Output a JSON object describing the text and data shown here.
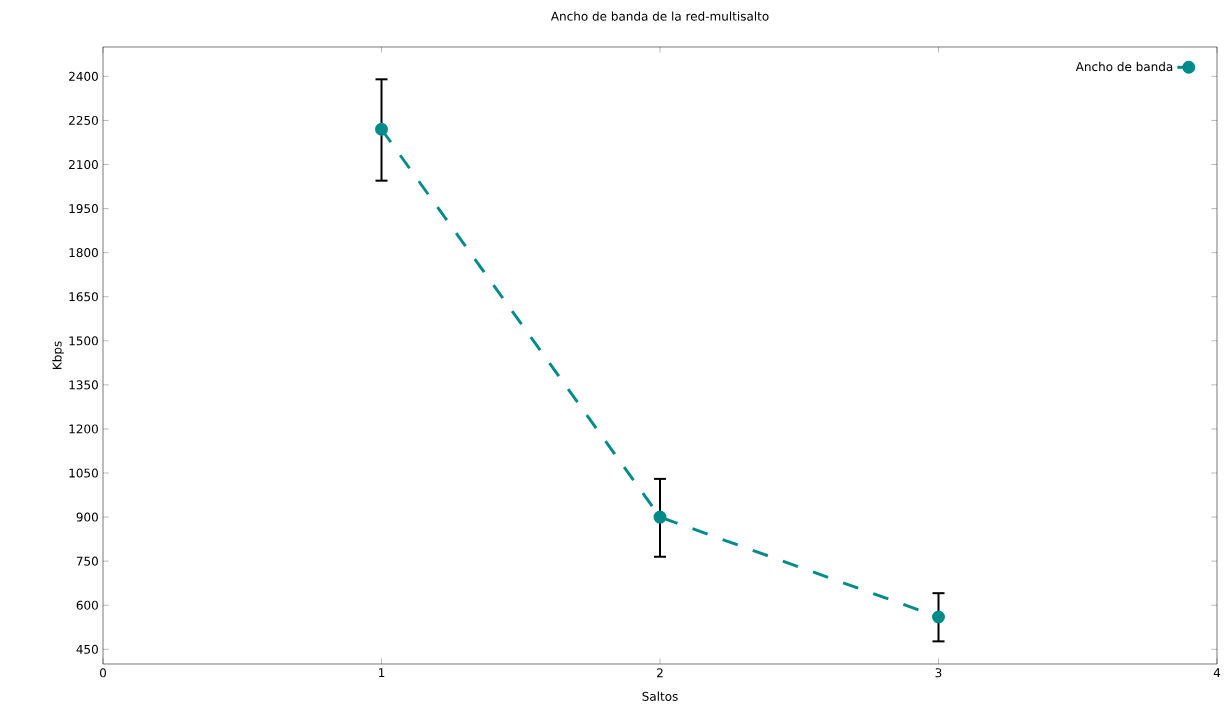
{
  "chart_data": {
    "type": "line",
    "title": "Ancho de banda de la red-multisalto",
    "xlabel": "Saltos",
    "ylabel": "Kbps",
    "x": [
      1,
      2,
      3
    ],
    "series": [
      {
        "name": "Ancho de banda",
        "color": "#008b8b",
        "values": [
          2220,
          900,
          560
        ],
        "errors": [
          [
            2045,
            2390
          ],
          [
            765,
            1030
          ],
          [
            477,
            641
          ]
        ]
      }
    ],
    "xlim": [
      0,
      4
    ],
    "xticks": [
      0,
      1,
      2,
      3,
      4
    ],
    "ylim": [
      400,
      2500
    ],
    "yticks": [
      450,
      600,
      750,
      900,
      1050,
      1200,
      1350,
      1500,
      1650,
      1800,
      1950,
      2100,
      2250,
      2400
    ],
    "grid": false,
    "legend": "top right",
    "marker": "circle",
    "line_style": "dashed"
  }
}
